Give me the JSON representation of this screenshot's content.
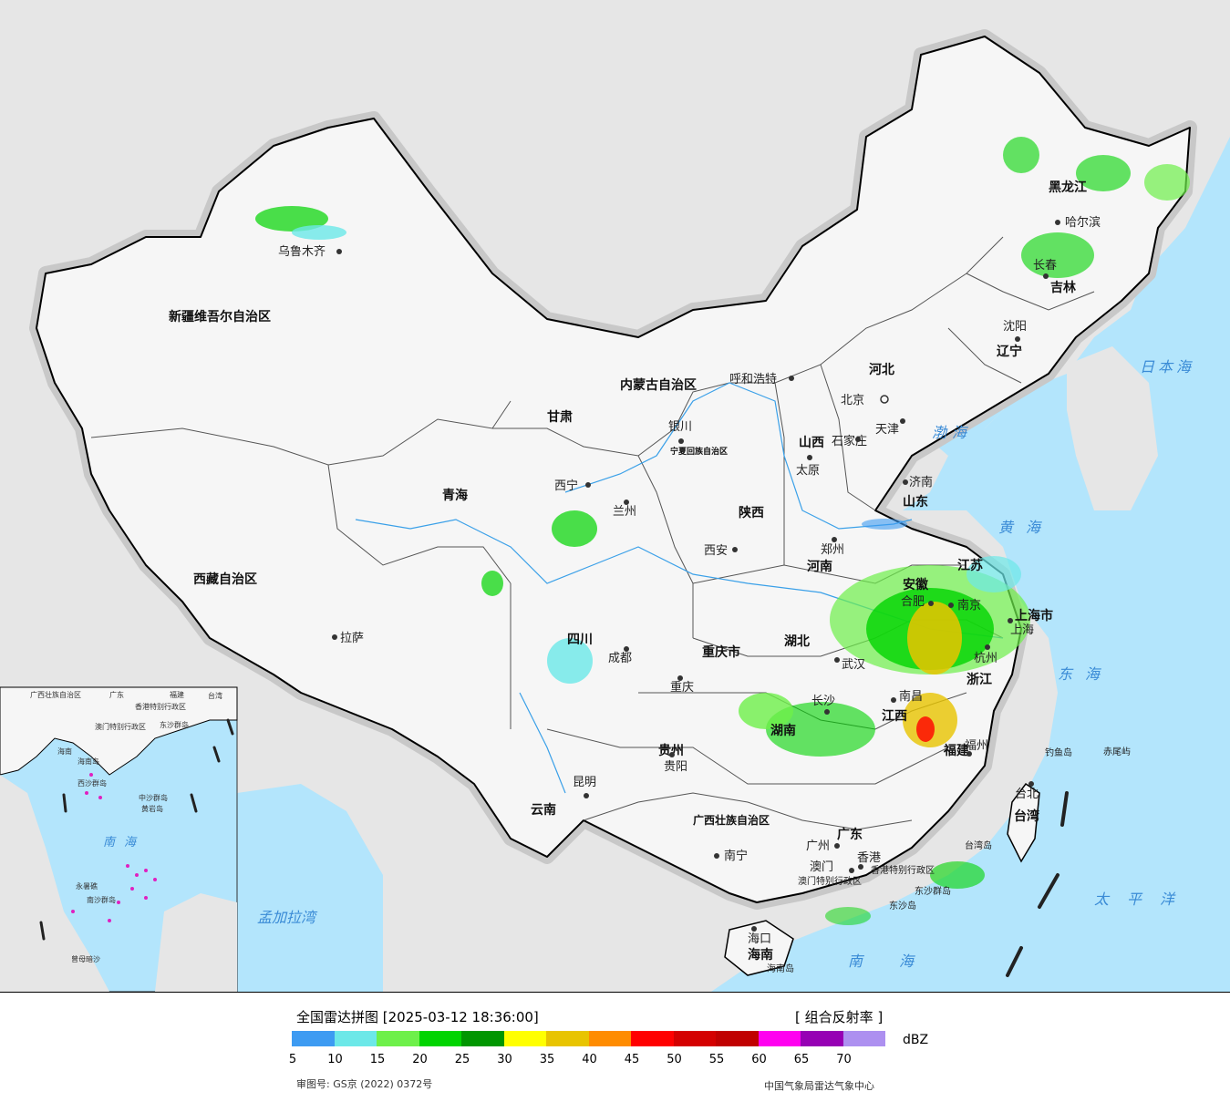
{
  "legend": {
    "title": "全国雷达拼图 [2025-03-12 18:36:00]",
    "product": "[ 组合反射率 ]",
    "unit": "dBZ",
    "ticks": [
      "5",
      "10",
      "15",
      "20",
      "25",
      "30",
      "35",
      "40",
      "45",
      "50",
      "55",
      "60",
      "65",
      "70"
    ],
    "colors": [
      "#3d9bf2",
      "#6ce8e8",
      "#6ef04a",
      "#00d400",
      "#009600",
      "#ffff00",
      "#e8c400",
      "#ff8c00",
      "#ff0000",
      "#d40000",
      "#c00000",
      "#ff00f0",
      "#9600b4",
      "#ad90f0"
    ],
    "approval": "审图号: GS京 (2022) 0372号",
    "source": "中国气象局雷达气象中心"
  },
  "map": {
    "colors": {
      "sea": "#b3e5fc",
      "land_foreign": "#e6e6e6",
      "land_china": "#f4f4f4",
      "border": "#000000",
      "river": "#3aa0e8"
    },
    "provinces": [
      "新疆维吾尔自治区",
      "西藏自治区",
      "青海",
      "甘肃",
      "内蒙古自治区",
      "黑龙江",
      "吉林",
      "辽宁",
      "河北",
      "山西",
      "山东",
      "河南",
      "陕西",
      "宁夏回族自治区",
      "四川",
      "重庆市",
      "湖北",
      "安徽",
      "江苏",
      "上海市",
      "浙江",
      "江西",
      "湖南",
      "贵州",
      "云南",
      "广西壮族自治区",
      "广东",
      "福建",
      "台湾",
      "海南",
      "香港特别行政区",
      "澳门特别行政区"
    ],
    "cities": [
      "乌鲁木齐",
      "哈尔滨",
      "长春",
      "沈阳",
      "呼和浩特",
      "北京",
      "天津",
      "石家庄",
      "太原",
      "济南",
      "银川",
      "西宁",
      "兰州",
      "西安",
      "郑州",
      "合肥",
      "南京",
      "上海",
      "杭州",
      "武汉",
      "成都",
      "重庆",
      "长沙",
      "南昌",
      "福州",
      "贵阳",
      "昆明",
      "南宁",
      "广州",
      "香港",
      "澳门",
      "海口",
      "拉萨",
      "台北"
    ],
    "seas": [
      "日本海",
      "渤海",
      "黄海",
      "东海",
      "太平洋",
      "南海",
      "孟加拉湾"
    ],
    "islands": [
      "钓鱼岛",
      "赤尾屿",
      "台湾岛",
      "东沙群岛",
      "东沙岛",
      "海南岛"
    ],
    "inset_labels": [
      "广西壮族自治区",
      "广东",
      "福建",
      "台湾",
      "香港特别行政区",
      "澳门特别行政区",
      "东沙群岛",
      "海南",
      "海南岛",
      "西沙群岛",
      "中沙群岛",
      "黄岩岛",
      "南海",
      "永暑礁",
      "南沙群岛",
      "曾母暗沙"
    ]
  }
}
